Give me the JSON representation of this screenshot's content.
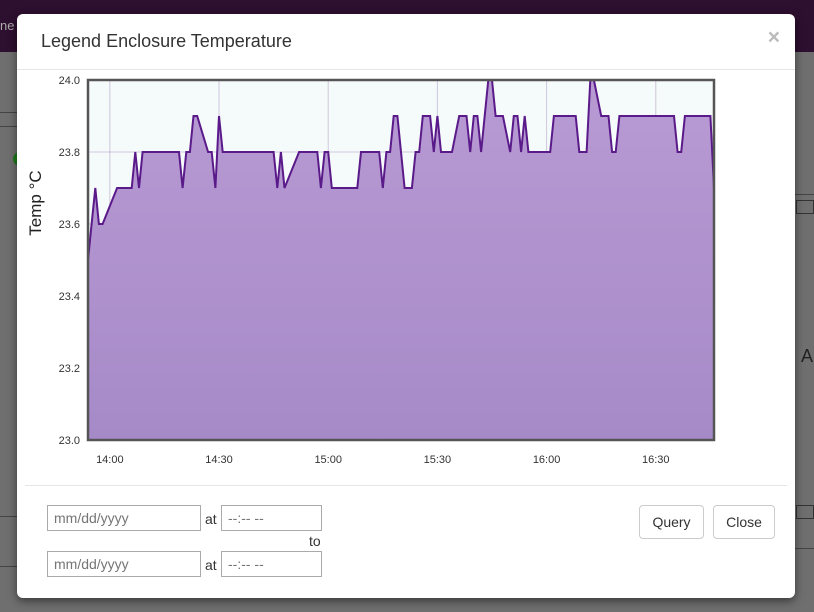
{
  "background": {
    "topbar_text": "ne",
    "right_text": "A"
  },
  "modal": {
    "title": "Legend Enclosure Temperature",
    "close_glyph": "×"
  },
  "footer": {
    "date_placeholder": "mm/dd/yyyy",
    "time_placeholder": "--:-- --",
    "at_label": "at",
    "to_label": "to",
    "query_label": "Query",
    "close_label": "Close"
  },
  "chart_data": {
    "type": "area",
    "title": "",
    "xlabel": "",
    "ylabel": "Temp °C",
    "x_unit": "time of day",
    "xlim": [
      "13:54",
      "16:46"
    ],
    "ylim": [
      23.0,
      24.0
    ],
    "x_ticks": [
      "14:00",
      "14:30",
      "15:00",
      "15:30",
      "16:00",
      "16:30"
    ],
    "y_ticks": [
      "23.0",
      "23.2",
      "23.4",
      "23.6",
      "23.8",
      "24.0"
    ],
    "grid": true,
    "legend": "none",
    "colors": {
      "line": "#5a1a8a",
      "fill_top": "#b89ad3",
      "fill_bottom": "#a68ac8",
      "plot_bg": "#f5fafa"
    },
    "series": [
      {
        "x": [
          "13:54",
          "13:55",
          "13:56",
          "13:57",
          "13:58",
          "14:02",
          "14:05",
          "14:06",
          "14:07",
          "14:08",
          "14:09",
          "14:10",
          "14:16",
          "14:18",
          "14:19",
          "14:20",
          "14:21",
          "14:22",
          "14:23",
          "14:24",
          "14:27",
          "14:28",
          "14:29",
          "14:30",
          "14:31",
          "14:32",
          "14:34",
          "14:35",
          "14:36",
          "14:37",
          "14:38",
          "14:39",
          "14:40",
          "14:41",
          "14:42",
          "14:44",
          "14:45",
          "14:46",
          "14:47",
          "14:48",
          "14:52",
          "14:57",
          "14:58",
          "14:59",
          "15:00",
          "15:01",
          "15:02",
          "15:03",
          "15:04",
          "15:05",
          "15:08",
          "15:09",
          "15:10",
          "15:11",
          "15:12",
          "15:14",
          "15:15",
          "15:16",
          "15:17",
          "15:18",
          "15:19",
          "15:20",
          "15:21",
          "15:23",
          "15:24",
          "15:25",
          "15:26",
          "15:27",
          "15:28",
          "15:29",
          "15:30",
          "15:31",
          "15:32",
          "15:33",
          "15:34",
          "15:36",
          "15:37",
          "15:38",
          "15:39",
          "15:40",
          "15:41",
          "15:42",
          "15:43",
          "15:44",
          "15:45",
          "15:46",
          "15:47",
          "15:48",
          "15:50",
          "15:51",
          "15:52",
          "15:53",
          "15:54",
          "15:55",
          "15:56",
          "15:57",
          "15:58",
          "16:01",
          "16:02",
          "16:04",
          "16:05",
          "16:08",
          "16:09",
          "16:11",
          "16:12",
          "16:13",
          "16:15",
          "16:16",
          "16:17",
          "16:18",
          "16:19",
          "16:20",
          "16:22",
          "16:23",
          "16:24",
          "16:25",
          "16:26",
          "16:30",
          "16:35",
          "16:36",
          "16:37",
          "16:38",
          "16:39",
          "16:43",
          "16:45",
          "16:46"
        ],
        "y": [
          23.5,
          23.6,
          23.7,
          23.6,
          23.6,
          23.7,
          23.7,
          23.7,
          23.8,
          23.7,
          23.8,
          23.8,
          23.8,
          23.8,
          23.8,
          23.7,
          23.8,
          23.8,
          23.9,
          23.9,
          23.8,
          23.8,
          23.7,
          23.9,
          23.8,
          23.8,
          23.8,
          23.8,
          23.8,
          23.8,
          23.8,
          23.8,
          23.8,
          23.8,
          23.8,
          23.8,
          23.8,
          23.7,
          23.8,
          23.7,
          23.8,
          23.8,
          23.7,
          23.8,
          23.8,
          23.7,
          23.7,
          23.7,
          23.7,
          23.7,
          23.7,
          23.8,
          23.8,
          23.8,
          23.8,
          23.8,
          23.7,
          23.8,
          23.8,
          23.9,
          23.9,
          23.8,
          23.7,
          23.7,
          23.8,
          23.8,
          23.9,
          23.9,
          23.9,
          23.8,
          23.9,
          23.8,
          23.8,
          23.8,
          23.8,
          23.9,
          23.9,
          23.9,
          23.8,
          23.9,
          23.9,
          23.8,
          23.9,
          24.0,
          24.0,
          23.9,
          23.9,
          23.9,
          23.8,
          23.9,
          23.9,
          23.8,
          23.9,
          23.8,
          23.8,
          23.8,
          23.8,
          23.8,
          23.9,
          23.9,
          23.9,
          23.9,
          23.8,
          23.8,
          24.0,
          24.0,
          23.9,
          23.9,
          23.9,
          23.8,
          23.8,
          23.9,
          23.9,
          23.9,
          23.9,
          23.9,
          23.9,
          23.9,
          23.9,
          23.8,
          23.8,
          23.9,
          23.9,
          23.9,
          23.9,
          23.7
        ]
      }
    ]
  }
}
